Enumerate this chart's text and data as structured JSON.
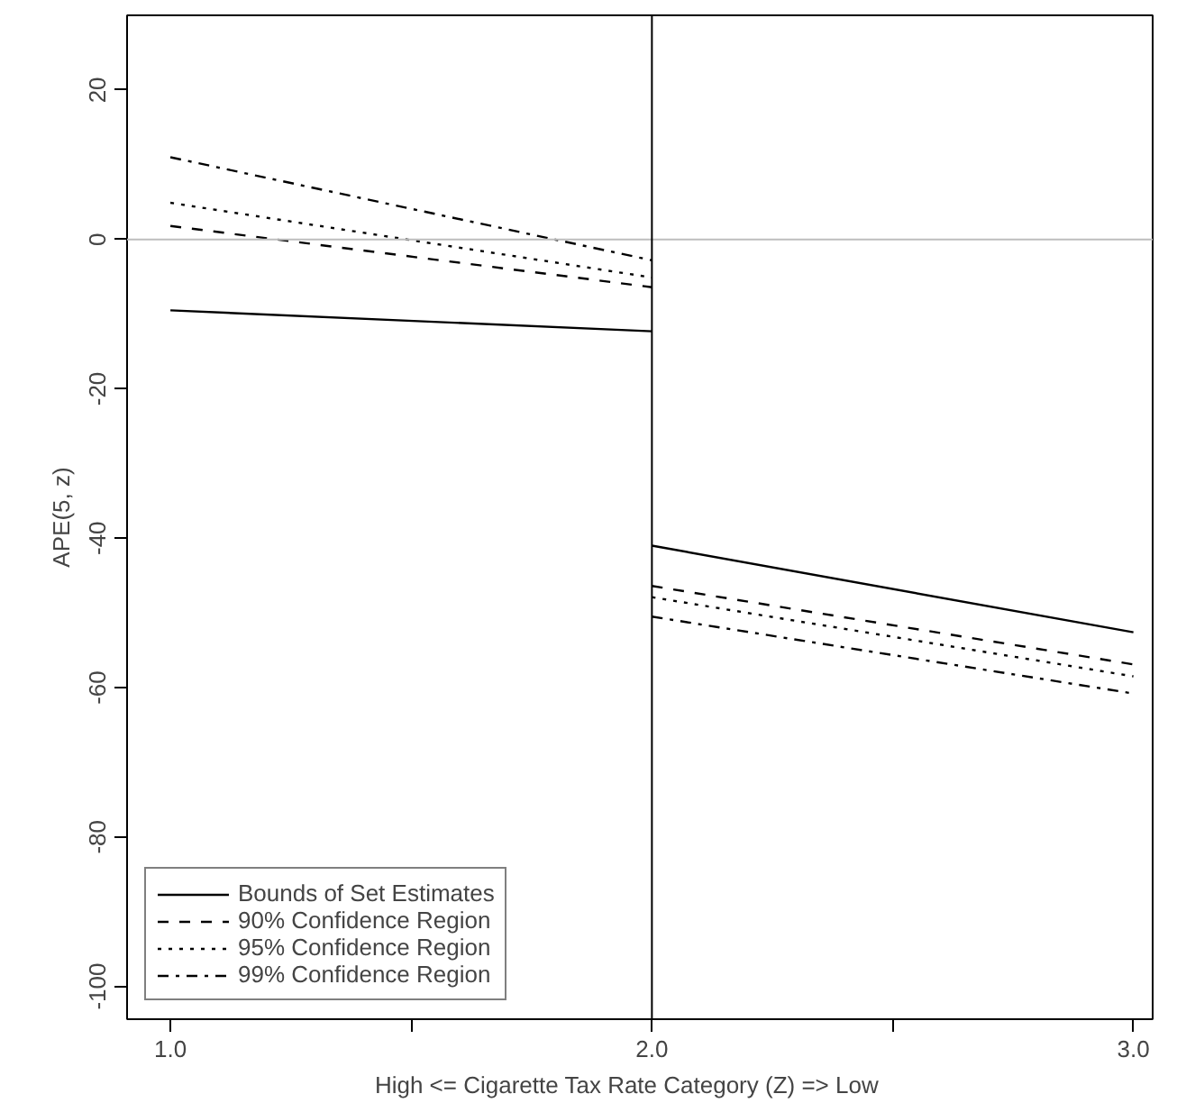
{
  "chart_data": {
    "type": "line",
    "xlabel": "High  <=  Cigarette Tax Rate Category (Z)  =>  Low",
    "ylabel": "APE(5, z)",
    "xlim": [
      0.91,
      3.04
    ],
    "ylim": [
      -104.4,
      30
    ],
    "xticks": [
      {
        "value": 1,
        "label": "1.0"
      },
      {
        "value": 1.5,
        "label": null
      },
      {
        "value": 2,
        "label": "2.0"
      },
      {
        "value": 2.5,
        "label": null
      },
      {
        "value": 3,
        "label": "3.0"
      }
    ],
    "yticks": [
      -100,
      -80,
      -60,
      -40,
      -20,
      0,
      20
    ],
    "grid": false,
    "legend": "bottom left",
    "marker": "none",
    "ref_lines": [
      {
        "axis": "y",
        "value": 0,
        "label": null,
        "color": "#bebebe",
        "line_style": "solid"
      },
      {
        "axis": "x",
        "value": 2,
        "label": null,
        "color": "#000000",
        "line_style": "solid"
      }
    ],
    "series": [
      {
        "name": "Bounds of Set Estimates",
        "color": "#000000",
        "line_style": "solid",
        "x": [
          1,
          2,
          null,
          2,
          3
        ],
        "values": [
          -9.5,
          -12.3,
          null,
          -41.0,
          -52.6
        ]
      },
      {
        "name": "90% Confidence Region",
        "color": "#000000",
        "line_style": "dashed",
        "x": [
          1,
          2,
          null,
          2,
          3
        ],
        "values": [
          1.8,
          -6.4,
          null,
          -46.4,
          -56.9
        ]
      },
      {
        "name": "95% Confidence Region",
        "color": "#000000",
        "line_style": "dotted",
        "x": [
          1,
          2,
          null,
          2,
          3
        ],
        "values": [
          4.9,
          -5.1,
          null,
          -47.9,
          -58.5
        ]
      },
      {
        "name": "99% Confidence Region",
        "color": "#000000",
        "line_style": "dashdot",
        "x": [
          1,
          2,
          null,
          2,
          3
        ],
        "values": [
          11.0,
          -2.8,
          null,
          -50.5,
          -60.8
        ]
      }
    ]
  }
}
